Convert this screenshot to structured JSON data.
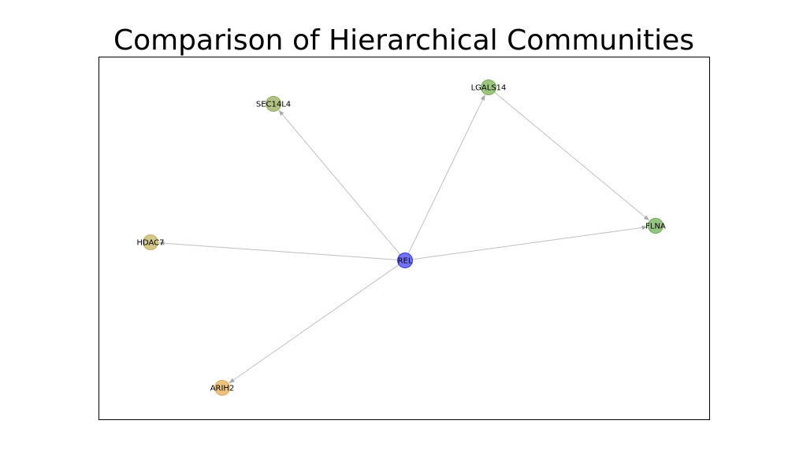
{
  "title": "Comparison of Hierarchical Communities",
  "graph": {
    "nodes": [
      {
        "id": "REL",
        "label": "REL",
        "color": "#0000ff",
        "opacity": 0.55
      },
      {
        "id": "SEC14L4",
        "label": "SEC14L4",
        "color": "#7f9a3a",
        "opacity": 0.6
      },
      {
        "id": "LGALS14",
        "label": "LGALS14",
        "color": "#5aa02c",
        "opacity": 0.6
      },
      {
        "id": "FLNA",
        "label": "FLNA",
        "color": "#4f9f2f",
        "opacity": 0.6
      },
      {
        "id": "HDAC7",
        "label": "HDAC7",
        "color": "#b5a23a",
        "opacity": 0.6
      },
      {
        "id": "ARIH2",
        "label": "ARIH2",
        "color": "#e09a2a",
        "opacity": 0.6
      }
    ],
    "edges": [
      {
        "source": "REL",
        "target": "SEC14L4"
      },
      {
        "source": "REL",
        "target": "LGALS14"
      },
      {
        "source": "REL",
        "target": "FLNA"
      },
      {
        "source": "REL",
        "target": "HDAC7"
      },
      {
        "source": "REL",
        "target": "ARIH2"
      },
      {
        "source": "LGALS14",
        "target": "FLNA"
      }
    ],
    "edge_color": "#c0c0c0",
    "arrow_color": "#a8a8a8"
  }
}
